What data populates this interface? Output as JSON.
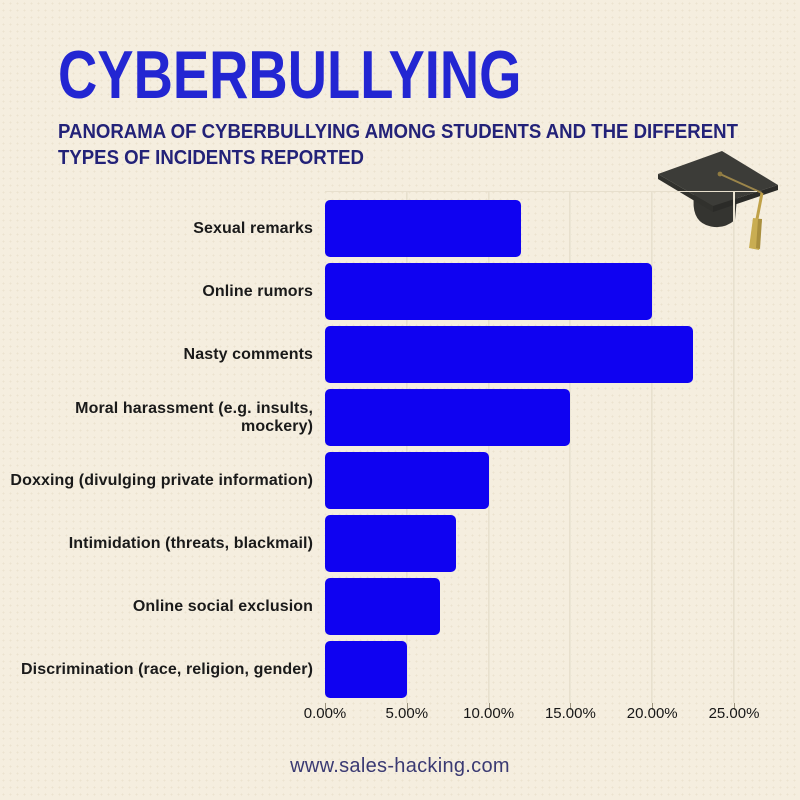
{
  "page": {
    "title": "CYBERBULLYING",
    "subtitle_line1": "PANORAMA OF CYBERBULLYING AMONG STUDENTS AND THE DIFFERENT",
    "subtitle_line2": "TYPES OF INCIDENTS REPORTED",
    "footer": "www.sales-hacking.com"
  },
  "icons": {
    "graduation_cap": "graduation-cap-icon with gold tassel"
  },
  "colors": {
    "background": "#f5eedf",
    "title": "#2326d2",
    "subtitle": "#232278",
    "bar": "#0f02f1",
    "category_label": "#1a1a1a",
    "axis_label": "#171717",
    "gridline": "#e5decb",
    "footer": "#3a3a73",
    "tassel": "#c9ad52",
    "cap": "#3a3a38"
  },
  "chart_data": {
    "type": "bar",
    "orientation": "horizontal",
    "title": "Panorama of cyberbullying among students and the different types of incidents reported",
    "categories": [
      "Sexual remarks",
      "Online rumors",
      "Nasty comments",
      "Moral harassment (e.g. insults, mockery)",
      "Doxxing (divulging private information)",
      "Intimidation (threats, blackmail)",
      "Online social exclusion",
      "Discrimination (race, religion, gender)"
    ],
    "values": [
      12,
      20,
      22.5,
      15,
      10,
      8,
      7,
      5
    ],
    "unit": "%",
    "xlabel": "",
    "ylabel": "",
    "xlim": [
      0,
      25
    ],
    "x_ticks": [
      0,
      5,
      10,
      15,
      20,
      25
    ],
    "x_tick_labels": [
      "0.00%",
      "5.00%",
      "10.00%",
      "15.00%",
      "20.00%",
      "25.00%"
    ],
    "grid": "vertical gridlines, cream background",
    "legend": "none",
    "bar_color": "#0f02f1"
  }
}
